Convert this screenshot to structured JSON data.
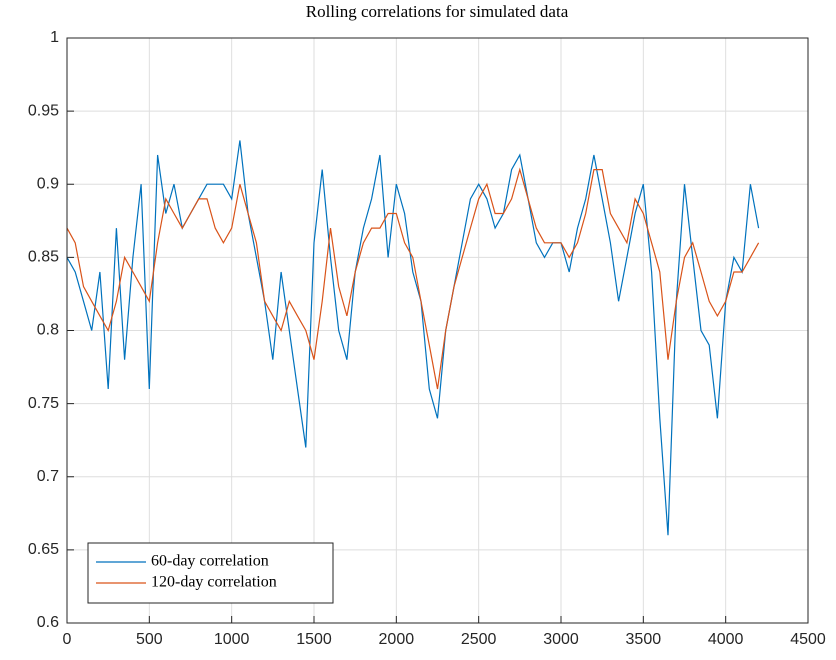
{
  "chart_data": {
    "type": "line",
    "title": "Rolling correlations for simulated data",
    "x": [
      0,
      50,
      100,
      150,
      200,
      250,
      300,
      350,
      400,
      450,
      500,
      550,
      600,
      650,
      700,
      750,
      800,
      850,
      900,
      950,
      1000,
      1050,
      1100,
      1150,
      1200,
      1250,
      1300,
      1350,
      1400,
      1450,
      1500,
      1550,
      1600,
      1650,
      1700,
      1750,
      1800,
      1850,
      1900,
      1950,
      2000,
      2050,
      2100,
      2150,
      2200,
      2250,
      2300,
      2350,
      2400,
      2450,
      2500,
      2550,
      2600,
      2650,
      2700,
      2750,
      2800,
      2850,
      2900,
      2950,
      3000,
      3050,
      3100,
      3150,
      3200,
      3250,
      3300,
      3350,
      3400,
      3450,
      3500,
      3550,
      3600,
      3650,
      3700,
      3750,
      3800,
      3850,
      3900,
      3950,
      4000,
      4050,
      4100,
      4150,
      4200
    ],
    "series": [
      {
        "name": "60-day correlation",
        "color": "#0072bd",
        "values": [
          0.85,
          0.84,
          0.82,
          0.8,
          0.84,
          0.76,
          0.87,
          0.78,
          0.85,
          0.9,
          0.76,
          0.92,
          0.88,
          0.9,
          0.87,
          0.88,
          0.89,
          0.9,
          0.9,
          0.9,
          0.89,
          0.93,
          0.88,
          0.85,
          0.82,
          0.78,
          0.84,
          0.8,
          0.76,
          0.72,
          0.86,
          0.91,
          0.85,
          0.8,
          0.78,
          0.84,
          0.87,
          0.89,
          0.92,
          0.85,
          0.9,
          0.88,
          0.84,
          0.82,
          0.76,
          0.74,
          0.8,
          0.83,
          0.86,
          0.89,
          0.9,
          0.89,
          0.87,
          0.88,
          0.91,
          0.92,
          0.89,
          0.86,
          0.85,
          0.86,
          0.86,
          0.84,
          0.87,
          0.89,
          0.92,
          0.89,
          0.86,
          0.82,
          0.85,
          0.88,
          0.9,
          0.84,
          0.74,
          0.66,
          0.82,
          0.9,
          0.85,
          0.8,
          0.79,
          0.74,
          0.82,
          0.85,
          0.84,
          0.9,
          0.87
        ]
      },
      {
        "name": "120-day correlation",
        "color": "#d95319",
        "values": [
          0.87,
          0.86,
          0.83,
          0.82,
          0.81,
          0.8,
          0.82,
          0.85,
          0.84,
          0.83,
          0.82,
          0.86,
          0.89,
          0.88,
          0.87,
          0.88,
          0.89,
          0.89,
          0.87,
          0.86,
          0.87,
          0.9,
          0.88,
          0.86,
          0.82,
          0.81,
          0.8,
          0.82,
          0.81,
          0.8,
          0.78,
          0.82,
          0.87,
          0.83,
          0.81,
          0.84,
          0.86,
          0.87,
          0.87,
          0.88,
          0.88,
          0.86,
          0.85,
          0.82,
          0.79,
          0.76,
          0.8,
          0.83,
          0.85,
          0.87,
          0.89,
          0.9,
          0.88,
          0.88,
          0.89,
          0.91,
          0.89,
          0.87,
          0.86,
          0.86,
          0.86,
          0.85,
          0.86,
          0.88,
          0.91,
          0.91,
          0.88,
          0.87,
          0.86,
          0.89,
          0.88,
          0.86,
          0.84,
          0.78,
          0.82,
          0.85,
          0.86,
          0.84,
          0.82,
          0.81,
          0.82,
          0.84,
          0.84,
          0.85,
          0.86
        ]
      }
    ],
    "xlim": [
      0,
      4500
    ],
    "xticks": [
      0,
      500,
      1000,
      1500,
      2000,
      2500,
      3000,
      3500,
      4000,
      4500
    ],
    "ylim": [
      0.6,
      1
    ],
    "yticks": [
      0.6,
      0.65,
      0.7,
      0.75,
      0.8,
      0.85,
      0.9,
      0.95,
      1
    ],
    "grid": true,
    "legend": "lower left"
  }
}
